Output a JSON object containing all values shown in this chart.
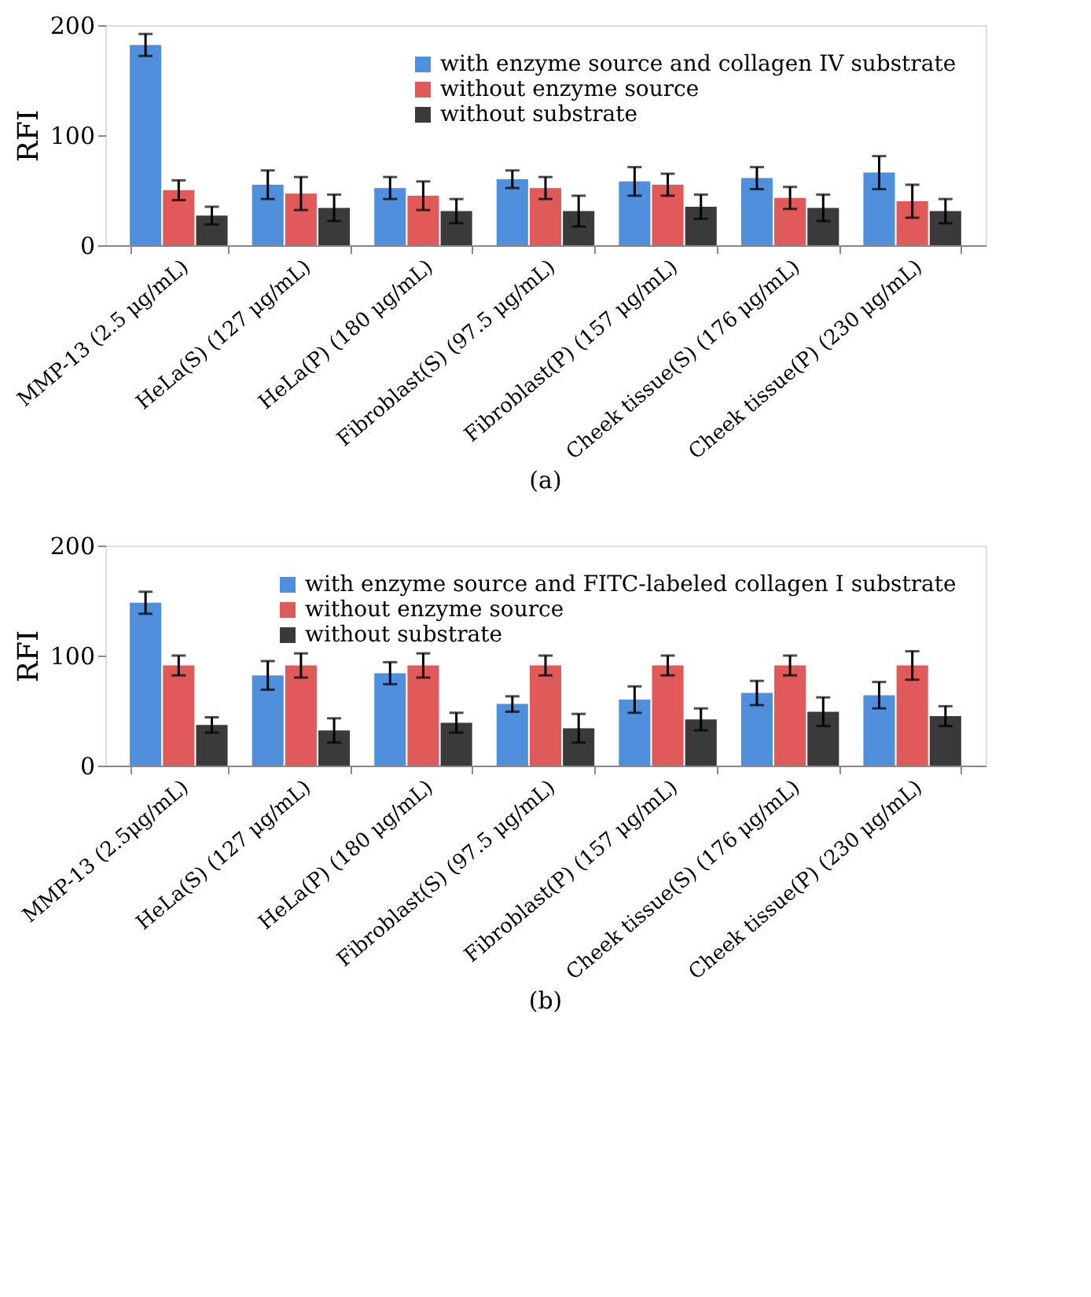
{
  "chart_data": [
    {
      "type": "bar",
      "ylabel": "RFI",
      "categories": [
        "MMP-13 (2.5 μg/mL)",
        "HeLa(S) (127 μg/mL)",
        "HeLa(P) (180 μg/mL)",
        "Fibroblast(S) (97.5 μg/mL)",
        "Fibroblast(P) (157 μg/mL)",
        "Cheek tissue(S) (176 μg/mL)",
        "Cheek tissue(P) (230 μg/mL)"
      ],
      "series": [
        {
          "name": "with enzyme source and collagen IV substrate",
          "color": "#4f8fdc",
          "values": [
            182,
            55,
            52,
            60,
            58,
            61,
            66
          ],
          "errors": [
            10,
            13,
            10,
            8,
            13,
            10,
            15
          ]
        },
        {
          "name": "without enzyme source",
          "color": "#e05a5a",
          "values": [
            50,
            47,
            45,
            52,
            55,
            43,
            40
          ],
          "errors": [
            9,
            15,
            13,
            10,
            10,
            10,
            15
          ]
        },
        {
          "name": "without substrate",
          "color": "#3a3a3a",
          "values": [
            27,
            34,
            31,
            31,
            35,
            34,
            31
          ],
          "errors": [
            8,
            12,
            11,
            14,
            11,
            12,
            11
          ]
        }
      ],
      "ylim": [
        0,
        200
      ],
      "yticks": [
        0,
        100,
        200
      ],
      "grid": false,
      "legend": "top right",
      "annotations": [
        "(a)"
      ]
    },
    {
      "type": "bar",
      "ylabel": "RFI",
      "categories": [
        "MMP-13 (2.5μg/mL)",
        "HeLa(S) (127 μg/mL)",
        "HeLa(P) (180 μg/mL)",
        "Fibroblast(S) (97.5 μg/mL)",
        "Fibroblast(P) (157 μg/mL)",
        "Cheek tissue(S) (176 μg/mL)",
        "Cheek tissue(P) (230 μg/mL)"
      ],
      "series": [
        {
          "name": "with enzyme source and FITC-labeled collagen I substrate",
          "color": "#4f8fdc",
          "values": [
            148,
            82,
            84,
            56,
            60,
            66,
            64
          ],
          "errors": [
            10,
            13,
            10,
            7,
            12,
            11,
            12
          ]
        },
        {
          "name": "without enzyme source",
          "color": "#e05a5a",
          "values": [
            91,
            91,
            91,
            91,
            91,
            91,
            91
          ],
          "errors": [
            9,
            11,
            11,
            9,
            9,
            9,
            13
          ]
        },
        {
          "name": "without substrate",
          "color": "#3a3a3a",
          "values": [
            37,
            32,
            39,
            34,
            42,
            49,
            45
          ],
          "errors": [
            7,
            11,
            9,
            13,
            10,
            13,
            9
          ]
        }
      ],
      "ylim": [
        0,
        200
      ],
      "yticks": [
        0,
        100,
        200
      ],
      "grid": false,
      "legend": "top right",
      "annotations": [
        "(b)"
      ]
    }
  ]
}
